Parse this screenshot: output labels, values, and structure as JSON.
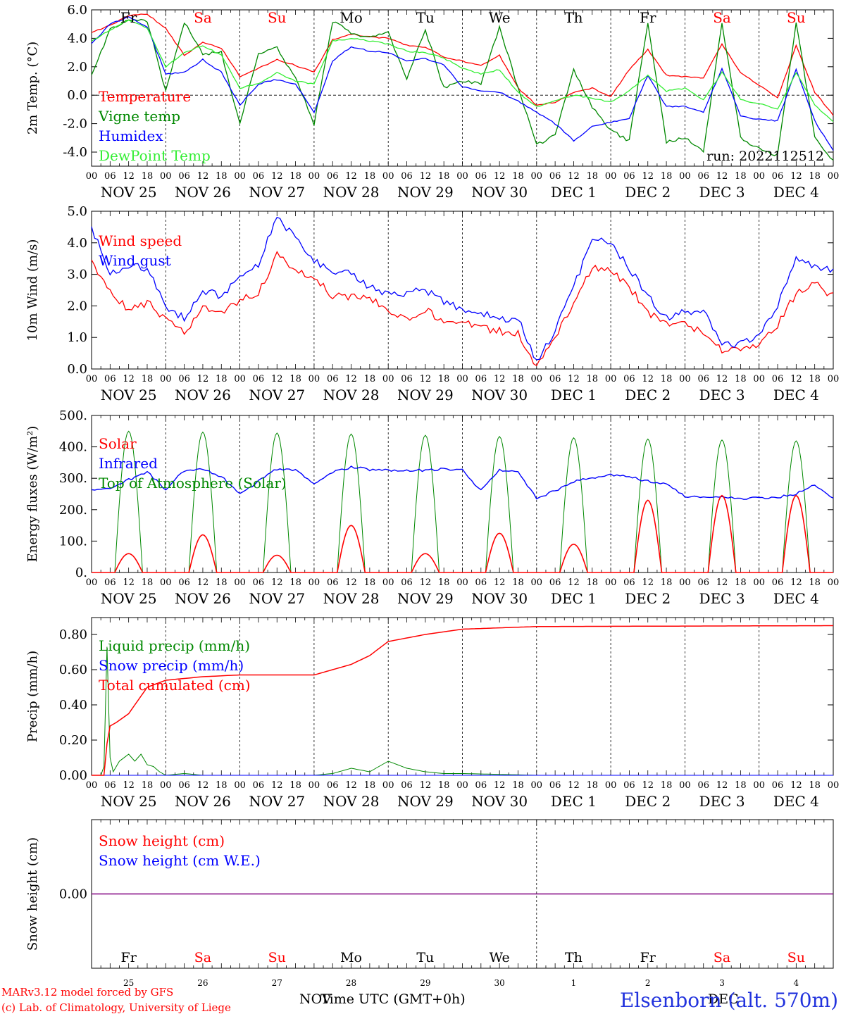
{
  "run_label": "run: 2022112512",
  "footer": {
    "model_line": "MARv3.12 model forced by GFS",
    "credit_line": "(c) Lab. of Climatology, University of Liege",
    "xlabel": "Time UTC (GMT+0h)",
    "month_left": "NOV",
    "month_right": "DEC",
    "station": "Elsenborn (alt. 570m)"
  },
  "time_axis": {
    "hour_ticks": [
      "00",
      "06",
      "12",
      "18"
    ],
    "end_tick": "00",
    "dates": [
      "NOV 25",
      "NOV 26",
      "NOV 27",
      "NOV 28",
      "NOV 29",
      "NOV 30",
      "DEC  1",
      "DEC  2",
      "DEC  3",
      "DEC  4"
    ],
    "weekdays": [
      "Fr",
      "Sa",
      "Su",
      "Mo",
      "Tu",
      "We",
      "Th",
      "Fr",
      "Sa",
      "Su"
    ],
    "weekend_flags": [
      false,
      true,
      true,
      false,
      false,
      false,
      false,
      false,
      true,
      true
    ],
    "day_numbers": [
      "25",
      "26",
      "27",
      "28",
      "29",
      "30",
      "1",
      "2",
      "3",
      "4"
    ]
  },
  "colors": {
    "red": "#ff0000",
    "green": "#008800",
    "blue": "#0000ff",
    "lightgreen": "#33ee33",
    "purple": "#800080",
    "weekday_text": "#000000",
    "weekend_text": "#ff0000",
    "station_text": "#2233dd"
  },
  "chart_data": [
    {
      "type": "line",
      "ylabel": "2m Temp. (°C)",
      "yticks": [
        "6.0",
        "4.0",
        "2.0",
        "0.0",
        "-2.0",
        "-4.0"
      ],
      "ylim": [
        -5,
        6
      ],
      "zero_line": true,
      "x_unit": "hours since NOV 25 00 UTC",
      "series": [
        {
          "name": "Temperature",
          "color": "red",
          "x": [
            0,
            6,
            12,
            18,
            24,
            30,
            36,
            42,
            48,
            54,
            60,
            66,
            72,
            78,
            84,
            90,
            96,
            102,
            108,
            114,
            120,
            126,
            132,
            138,
            144,
            150,
            156,
            162,
            168,
            174,
            180,
            186,
            192,
            198,
            204,
            210,
            216,
            222,
            228,
            234,
            240
          ],
          "y": [
            4.4,
            4.9,
            5.6,
            5.7,
            4.7,
            2.8,
            3.7,
            3.3,
            1.3,
            1.9,
            2.5,
            2.1,
            1.6,
            3.9,
            4.3,
            4.1,
            4.0,
            3.5,
            3.4,
            2.7,
            2.4,
            2.1,
            2.8,
            0.5,
            -0.7,
            -0.5,
            0.2,
            0.5,
            -0.1,
            1.8,
            3.2,
            1.4,
            1.3,
            1.2,
            3.6,
            1.6,
            0.7,
            -0.2,
            3.5,
            0.2,
            -1.4
          ]
        },
        {
          "name": "Vigne temp",
          "color": "green",
          "x": [
            0,
            6,
            12,
            18,
            24,
            30,
            36,
            42,
            48,
            54,
            60,
            66,
            72,
            78,
            84,
            90,
            96,
            102,
            108,
            114,
            120,
            126,
            132,
            138,
            144,
            150,
            156,
            162,
            168,
            174,
            180,
            186,
            192,
            198,
            204,
            210,
            216,
            222,
            228,
            234,
            240
          ],
          "y": [
            1.5,
            4.6,
            5.4,
            5.2,
            0.3,
            5.1,
            2.9,
            3.0,
            -2.0,
            3.0,
            3.3,
            1.2,
            -2.0,
            5.2,
            4.4,
            4.0,
            4.4,
            1.2,
            4.6,
            0.5,
            1.0,
            0.8,
            4.8,
            0.5,
            -3.5,
            -2.8,
            1.8,
            -0.8,
            -2.5,
            -3.2,
            5.1,
            -3.3,
            -3.0,
            -4.0,
            5.1,
            -3.0,
            -3.8,
            -4.2,
            5.2,
            -3.0,
            -4.6
          ]
        },
        {
          "name": "Humidex",
          "color": "blue",
          "x": [
            0,
            6,
            12,
            18,
            24,
            30,
            36,
            42,
            48,
            54,
            60,
            66,
            72,
            78,
            84,
            90,
            96,
            102,
            108,
            114,
            120,
            126,
            132,
            138,
            144,
            150,
            156,
            162,
            168,
            174,
            180,
            186,
            192,
            198,
            204,
            210,
            216,
            222,
            228,
            234,
            240
          ],
          "y": [
            3.6,
            5.0,
            5.5,
            4.8,
            1.5,
            1.6,
            2.5,
            1.6,
            -0.7,
            0.8,
            1.1,
            0.8,
            -1.2,
            2.4,
            3.4,
            3.1,
            3.0,
            2.4,
            2.6,
            2.1,
            0.6,
            0.3,
            0.2,
            -0.4,
            -1.2,
            -2.0,
            -3.2,
            -2.2,
            -1.9,
            -1.6,
            1.4,
            -0.8,
            -0.8,
            -1.2,
            1.9,
            -1.5,
            -1.7,
            -1.8,
            1.8,
            -1.8,
            -3.9
          ]
        },
        {
          "name": "DewPoint Temp",
          "color": "lightgreen",
          "x": [
            0,
            6,
            12,
            18,
            24,
            30,
            36,
            42,
            48,
            54,
            60,
            66,
            72,
            78,
            84,
            90,
            96,
            102,
            108,
            114,
            120,
            126,
            132,
            138,
            144,
            150,
            156,
            162,
            168,
            174,
            180,
            186,
            192,
            198,
            204,
            210,
            216,
            222,
            228,
            234,
            240
          ],
          "y": [
            3.8,
            4.6,
            5.3,
            4.7,
            2.0,
            3.0,
            3.5,
            2.8,
            0.5,
            0.8,
            1.6,
            1.0,
            0.8,
            3.8,
            4.0,
            3.8,
            3.6,
            3.1,
            3.0,
            2.6,
            1.9,
            1.5,
            1.8,
            0.2,
            -0.8,
            -0.4,
            0.0,
            -0.2,
            -0.5,
            0.3,
            1.4,
            0.3,
            0.5,
            -0.3,
            1.6,
            -0.3,
            -0.6,
            -1.0,
            1.6,
            -0.7,
            -1.9
          ]
        }
      ]
    },
    {
      "type": "line",
      "ylabel": "10m Wind (m/s)",
      "yticks": [
        "5.0",
        "4.0",
        "3.0",
        "2.0",
        "1.0",
        "0.0"
      ],
      "ylim": [
        0,
        5
      ],
      "x_unit": "hours since NOV 25 00 UTC",
      "series": [
        {
          "name": "Wind speed",
          "color": "red",
          "x": [
            0,
            6,
            12,
            18,
            24,
            30,
            36,
            42,
            48,
            54,
            60,
            66,
            72,
            78,
            84,
            90,
            96,
            102,
            108,
            114,
            120,
            126,
            132,
            138,
            144,
            150,
            156,
            162,
            168,
            174,
            180,
            186,
            192,
            198,
            204,
            210,
            216,
            222,
            228,
            234,
            240
          ],
          "y": [
            3.4,
            2.4,
            1.9,
            2.1,
            1.6,
            1.1,
            1.9,
            1.8,
            2.2,
            2.4,
            3.6,
            3.1,
            2.9,
            2.3,
            2.3,
            2.2,
            1.9,
            1.6,
            1.9,
            1.5,
            1.5,
            1.3,
            1.2,
            1.1,
            0.1,
            1.0,
            2.1,
            3.2,
            3.1,
            2.6,
            1.8,
            1.4,
            1.4,
            1.2,
            0.6,
            0.6,
            0.8,
            1.4,
            2.4,
            2.7,
            2.3
          ]
        },
        {
          "name": "Wind gust",
          "color": "blue",
          "x": [
            0,
            6,
            12,
            18,
            24,
            30,
            36,
            42,
            48,
            54,
            60,
            66,
            72,
            78,
            84,
            90,
            96,
            102,
            108,
            114,
            120,
            126,
            132,
            138,
            144,
            150,
            156,
            162,
            168,
            174,
            180,
            186,
            192,
            198,
            204,
            210,
            216,
            222,
            228,
            234,
            240
          ],
          "y": [
            4.5,
            3.0,
            3.3,
            3.2,
            2.0,
            1.6,
            2.5,
            2.3,
            3.0,
            3.3,
            4.9,
            4.1,
            3.4,
            3.1,
            3.0,
            2.6,
            2.4,
            2.4,
            2.5,
            2.1,
            1.9,
            1.8,
            1.6,
            1.6,
            0.2,
            1.2,
            2.6,
            4.1,
            4.0,
            3.2,
            2.3,
            1.6,
            1.8,
            1.8,
            0.8,
            0.8,
            1.1,
            2.0,
            3.5,
            3.2,
            3.1
          ]
        }
      ]
    },
    {
      "type": "line",
      "ylabel": "Energy fluxes (W/m²)",
      "yticks": [
        "500.",
        "400.",
        "300.",
        "200.",
        "100.",
        "0."
      ],
      "ylim": [
        0,
        500
      ],
      "x_unit": "hours since NOV 25 00 UTC",
      "diurnal": {
        "sunrise_hour": 7.5,
        "sunset_hour": 16.5
      },
      "series": [
        {
          "name": "Solar",
          "color": "red",
          "daily_peaks": [
            60,
            120,
            55,
            150,
            60,
            125,
            90,
            230,
            245,
            245
          ]
        },
        {
          "name": "Infrared",
          "color": "blue",
          "x": [
            0,
            6,
            12,
            18,
            24,
            30,
            36,
            42,
            48,
            54,
            60,
            66,
            72,
            78,
            84,
            90,
            96,
            102,
            108,
            114,
            120,
            126,
            132,
            138,
            144,
            150,
            156,
            162,
            168,
            174,
            180,
            186,
            192,
            198,
            204,
            210,
            216,
            222,
            228,
            234,
            240
          ],
          "y": [
            262,
            270,
            295,
            320,
            265,
            325,
            330,
            305,
            250,
            290,
            330,
            325,
            280,
            320,
            335,
            328,
            326,
            326,
            325,
            330,
            328,
            260,
            325,
            320,
            235,
            260,
            290,
            300,
            310,
            305,
            290,
            280,
            242,
            240,
            240,
            235,
            238,
            240,
            250,
            280,
            235
          ]
        },
        {
          "name": "Top of Atmosphere (Solar)",
          "color": "green",
          "daily_peaks": [
            450,
            447,
            444,
            441,
            437,
            433,
            429,
            425,
            422,
            419
          ]
        }
      ]
    },
    {
      "type": "line",
      "ylabel": "Precip (mm/h)",
      "yticks": [
        "0.80",
        "0.60",
        "0.40",
        "0.20",
        "0.00"
      ],
      "ylim": [
        0,
        0.9
      ],
      "x_unit": "hours since NOV 25 00 UTC",
      "series": [
        {
          "name": "Liquid precip (mm/h)",
          "color": "green",
          "x": [
            0,
            3,
            4,
            5,
            6,
            7,
            8,
            9,
            12,
            14,
            16,
            18,
            20,
            22,
            24,
            30,
            36,
            48,
            72,
            78,
            84,
            90,
            96,
            102,
            108,
            114,
            120,
            144,
            240
          ],
          "y": [
            0,
            0,
            0.05,
            0.73,
            0.1,
            0.02,
            0.05,
            0.08,
            0.12,
            0.08,
            0.12,
            0.06,
            0.05,
            0.02,
            0.0,
            0.01,
            0.0,
            0.0,
            0.0,
            0.01,
            0.04,
            0.02,
            0.08,
            0.04,
            0.02,
            0.01,
            0.01,
            0.0,
            0.0
          ]
        },
        {
          "name": "Snow precip (mm/h)",
          "color": "blue",
          "x": [
            0,
            240
          ],
          "y": [
            0,
            0
          ]
        },
        {
          "name": "Total cumulated (cm)",
          "color": "red",
          "x": [
            0,
            4,
            5,
            6,
            8,
            12,
            18,
            24,
            36,
            48,
            72,
            78,
            84,
            90,
            96,
            102,
            108,
            120,
            144,
            240
          ],
          "y": [
            0,
            0,
            0.18,
            0.28,
            0.3,
            0.35,
            0.5,
            0.54,
            0.56,
            0.57,
            0.57,
            0.6,
            0.63,
            0.68,
            0.76,
            0.78,
            0.8,
            0.83,
            0.845,
            0.85
          ]
        }
      ]
    },
    {
      "type": "line",
      "ylabel": "Snow height (cm)",
      "yticks": [
        "0.00"
      ],
      "ylim": [
        -1,
        1
      ],
      "x_unit": "hours since NOV 25 00 UTC",
      "series": [
        {
          "name": "Snow height (cm)",
          "color": "red",
          "x": [
            0,
            240
          ],
          "y": [
            0,
            0
          ]
        },
        {
          "name": "Snow height (cm W.E.)",
          "color": "blue",
          "x": [
            0,
            240
          ],
          "y": [
            0,
            0
          ]
        }
      ]
    }
  ]
}
